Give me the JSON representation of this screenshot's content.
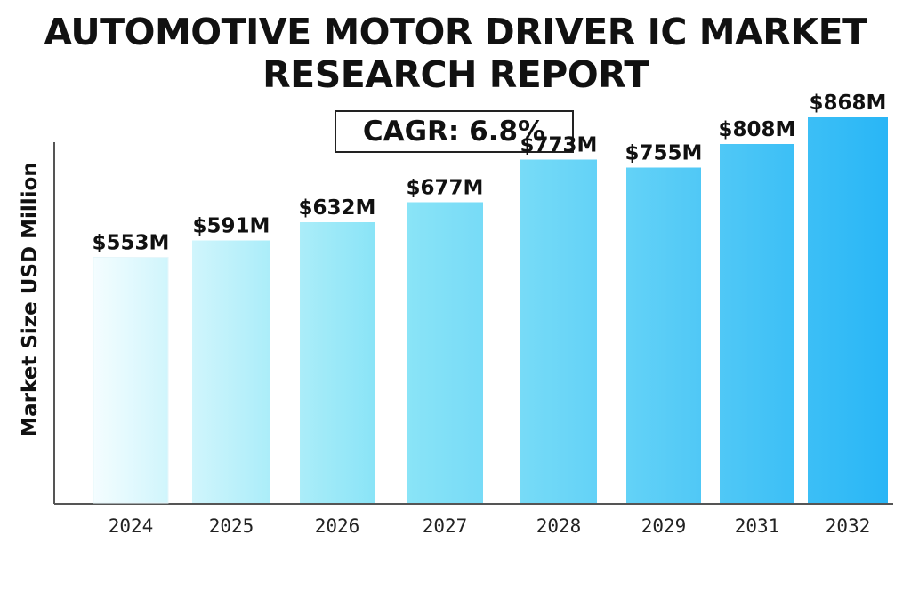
{
  "title_line1": "AUTOMOTIVE MOTOR DRIVER IC MARKET",
  "title_line2": "RESEARCH REPORT",
  "cagr_label": "CAGR: 6.8%",
  "colors": {
    "bar_light": "#f4fdff",
    "bar_mid": "#8ee6f7",
    "bar_dark": "#29b6f6",
    "axis": "#555555"
  },
  "chart_data": {
    "type": "bar",
    "title": "AUTOMOTIVE MOTOR DRIVER IC MARKET RESEARCH REPORT",
    "xlabel": "",
    "ylabel": "Market Size USD Million",
    "categories": [
      "2024",
      "2025",
      "2026",
      "2027",
      "2028",
      "2029",
      "2031",
      "2032"
    ],
    "values": [
      553,
      591,
      632,
      677,
      773,
      755,
      808,
      868
    ],
    "data_labels": [
      "$553M",
      "$591M",
      "$632M",
      "$677M",
      "$773M",
      "$755M",
      "$808M",
      "$868M"
    ],
    "grid": false,
    "legend": "none"
  }
}
